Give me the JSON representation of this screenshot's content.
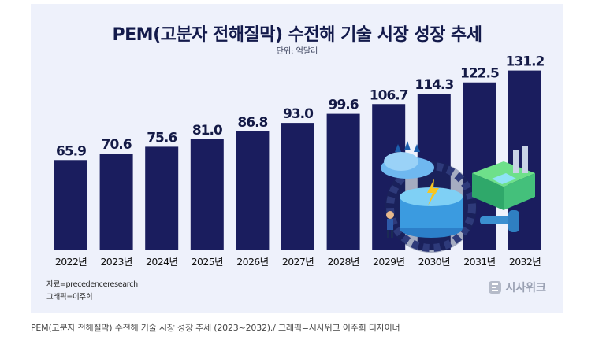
{
  "chart_data": {
    "type": "bar",
    "title": "PEM(고분자 전해질막) 수전해 기술 시장 성장 추세",
    "subtitle": "단위: 억달러",
    "categories": [
      "2022년",
      "2023년",
      "2024년",
      "2025년",
      "2026년",
      "2027년",
      "2028년",
      "2029년",
      "2030년",
      "2031년",
      "2032년"
    ],
    "values": [
      65.9,
      70.6,
      75.6,
      81.0,
      86.8,
      93.0,
      99.6,
      106.7,
      114.3,
      122.5,
      131.2
    ],
    "value_labels": [
      "65.9",
      "70.6",
      "75.6",
      "81.0",
      "86.8",
      "93.0",
      "99.6",
      "106.7",
      "114.3",
      "122.5",
      "131.2"
    ],
    "grid": false,
    "bar_color": "#1a1d5e"
  },
  "credits": {
    "source": "자료=precedenceresearch",
    "graphic": "그래픽=이주희"
  },
  "brand": {
    "name": "시사위크",
    "icon": "sisaweek-logo-icon"
  },
  "caption": "PEM(고분자 전해질막) 수전해 기술 시장 성장 추세 (2023~2032)./ 그래픽=시사위크 이주희 디자이너"
}
